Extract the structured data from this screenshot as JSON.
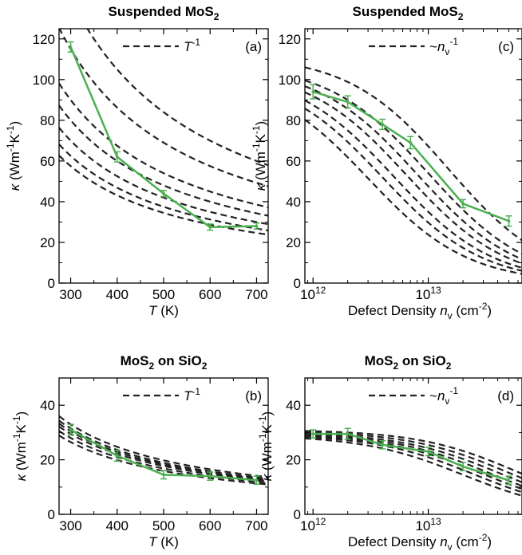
{
  "chart_data": [
    {
      "panel": "(a)",
      "type": "line",
      "title": "Suspended MoS",
      "title_sub": "2",
      "xlabel": "T",
      "xunit": " (K)",
      "ylabel": "κ (Wm",
      "ylabel_parts": [
        "κ (Wm",
        "-1",
        "K",
        "-1",
        ")"
      ],
      "xlim": [
        275,
        725
      ],
      "ylim": [
        0,
        125
      ],
      "xscale": "linear",
      "xticks": [
        300,
        400,
        500,
        600,
        700
      ],
      "xtick_labels": [
        "300",
        "400",
        "500",
        "600",
        "700"
      ],
      "yticks": [
        0,
        20,
        40,
        60,
        80,
        100,
        120
      ],
      "ytick_labels": [
        "0",
        "20",
        "40",
        "60",
        "80",
        "100",
        "120"
      ],
      "legend": {
        "label": "T",
        "sup": "-1",
        "prefix": "",
        "position": "top-right",
        "style": "dashed"
      },
      "reference_curves": {
        "form": "inverse-x",
        "x0": 300,
        "values_at_x0": [
          140,
          115,
          90,
          80,
          70,
          62.5,
          57.5
        ]
      },
      "series": [
        {
          "x": [
            300,
            400,
            500,
            600,
            700
          ],
          "values": [
            116,
            62,
            44,
            27.5,
            28
          ],
          "errors": [
            2.5,
            2.5,
            1.5,
            1.5,
            1.5
          ],
          "color": "#4caf50"
        }
      ]
    },
    {
      "panel": "(b)",
      "type": "line",
      "title": "MoS",
      "title_sub": "2",
      "title_suffix": " on SiO",
      "title_sub2": "2",
      "xlabel": "T",
      "xunit": " (K)",
      "ylabel_parts": [
        "κ (Wm",
        "-1",
        "K",
        "-1",
        ")"
      ],
      "xlim": [
        275,
        725
      ],
      "ylim": [
        0,
        50
      ],
      "xscale": "linear",
      "xticks": [
        300,
        400,
        500,
        600,
        700
      ],
      "xtick_labels": [
        "300",
        "400",
        "500",
        "600",
        "700"
      ],
      "yticks": [
        0,
        20,
        40
      ],
      "ytick_labels": [
        "0",
        "20",
        "40"
      ],
      "legend": {
        "label": "T",
        "sup": "-1",
        "prefix": "",
        "position": "top-right",
        "style": "dashed"
      },
      "reference_curves": {
        "form": "inverse-x",
        "x0": 300,
        "values_at_x0": [
          33,
          31.5,
          30.5,
          29.5,
          28,
          26.5
        ]
      },
      "series": [
        {
          "x": [
            300,
            400,
            500,
            600,
            700
          ],
          "values": [
            31,
            21.5,
            14.5,
            14,
            12.5
          ],
          "errors": [
            2,
            2,
            1.5,
            1.5,
            1.5
          ],
          "color": "#4caf50"
        }
      ]
    },
    {
      "panel": "(c)",
      "type": "line",
      "title": "Suspended MoS",
      "title_sub": "2",
      "xlabel": "Defect Density ",
      "xlabel_var": "n",
      "xlabel_var_sub": "v",
      "xunit": " (cm",
      "xunit_sup": "-2",
      "xunit_end": ")",
      "ylabel_parts": [
        "κ (Wm",
        "-1",
        "K",
        "-1",
        ")"
      ],
      "xlim": [
        850000000000.0,
        65000000000000.0
      ],
      "ylim": [
        0,
        125
      ],
      "xscale": "log",
      "xticks": [
        1000000000000.0,
        10000000000000.0
      ],
      "xtick_labels": [
        "10",
        "10"
      ],
      "xtick_exps": [
        "12",
        "13"
      ],
      "yticks": [
        0,
        20,
        40,
        60,
        80,
        100,
        120
      ],
      "ytick_labels": [
        "0",
        "20",
        "40",
        "60",
        "80",
        "100",
        "120"
      ],
      "legend": {
        "label": "n",
        "sub": "v",
        "sup": "-1",
        "prefix": "~",
        "position": "top-right",
        "style": "dashed"
      },
      "reference_curves": {
        "form": "matthiessen-n",
        "k0": [
          112,
          108,
          107,
          106,
          105,
          104,
          103
        ],
        "n_half": [
          15000000000000.0,
          10000000000000.0,
          8000000000000.0,
          6500000000000.0,
          5000000000000.0,
          4000000000000.0,
          3000000000000.0
        ]
      },
      "series": [
        {
          "x": [
            1000000000000.0,
            2000000000000.0,
            4000000000000.0,
            7000000000000.0,
            20000000000000.0,
            50000000000000.0
          ],
          "values": [
            94,
            89,
            78,
            69,
            39,
            30.5
          ],
          "errors": [
            3.5,
            3,
            2.5,
            3,
            2,
            2.5
          ],
          "color": "#4caf50"
        }
      ]
    },
    {
      "panel": "(d)",
      "type": "line",
      "title": "MoS",
      "title_sub": "2",
      "title_suffix": " on SiO",
      "title_sub2": "2",
      "xlabel": "Defect Density ",
      "xlabel_var": "n",
      "xlabel_var_sub": "v",
      "xunit": " (cm",
      "xunit_sup": "-2",
      "xunit_end": ")",
      "ylabel_parts": [
        "κ (Wm",
        "-1",
        "K",
        "-1",
        ")"
      ],
      "xlim": [
        850000000000.0,
        65000000000000.0
      ],
      "ylim": [
        0,
        50
      ],
      "xscale": "log",
      "xticks": [
        1000000000000.0,
        10000000000000.0
      ],
      "xtick_labels": [
        "10",
        "10"
      ],
      "xtick_exps": [
        "12",
        "13"
      ],
      "yticks": [
        0,
        20,
        40
      ],
      "ytick_labels": [
        "0",
        "20",
        "40"
      ],
      "legend": {
        "label": "n",
        "sub": "v",
        "sup": "-1",
        "prefix": "~",
        "position": "top-right",
        "style": "dashed"
      },
      "reference_curves": {
        "form": "matthiessen-n",
        "k0": [
          31,
          30.5,
          30,
          29.8,
          29.5,
          29.3,
          29
        ],
        "n_half": [
          60000000000000.0,
          50000000000000.0,
          42000000000000.0,
          35000000000000.0,
          30000000000000.0,
          25000000000000.0,
          20000000000000.0
        ]
      },
      "series": [
        {
          "x": [
            1000000000000.0,
            2000000000000.0,
            4000000000000.0,
            10000000000000.0,
            20000000000000.0,
            50000000000000.0
          ],
          "values": [
            29.5,
            29.5,
            25.5,
            23,
            17.5,
            12.5
          ],
          "errors": [
            1.5,
            2,
            1.5,
            1.5,
            1.5,
            1.5
          ],
          "color": "#4caf50"
        }
      ]
    }
  ]
}
